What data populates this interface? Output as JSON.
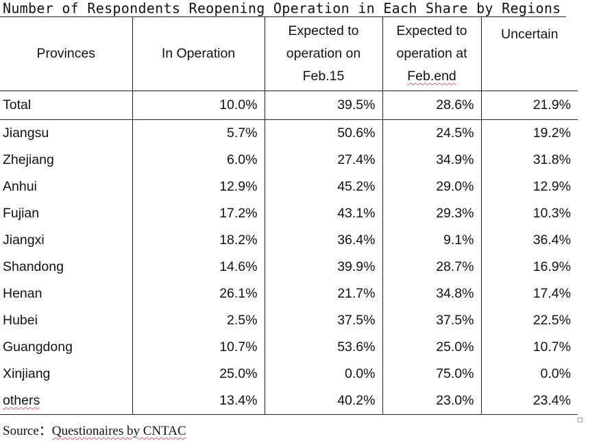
{
  "title": "Number of Respondents Reopening Operation in Each Share by Regions",
  "headers": {
    "provinces": "Provinces",
    "in_operation": "In Operation",
    "feb15": [
      "Expected to",
      "operation on",
      "Feb.15"
    ],
    "febend": [
      "Expected to",
      "operation at",
      "Feb.end"
    ],
    "uncertain": "Uncertain"
  },
  "rows": [
    {
      "province": "Total",
      "in_operation": "10.0%",
      "feb15": "39.5%",
      "febend": "28.6%",
      "uncertain": "21.9%"
    },
    {
      "province": "Jiangsu",
      "in_operation": "5.7%",
      "feb15": "50.6%",
      "febend": "24.5%",
      "uncertain": "19.2%"
    },
    {
      "province": "Zhejiang",
      "in_operation": "6.0%",
      "feb15": "27.4%",
      "febend": "34.9%",
      "uncertain": "31.8%"
    },
    {
      "province": "Anhui",
      "in_operation": "12.9%",
      "feb15": "45.2%",
      "febend": "29.0%",
      "uncertain": "12.9%"
    },
    {
      "province": "Fujian",
      "in_operation": "17.2%",
      "feb15": "43.1%",
      "febend": "29.3%",
      "uncertain": "10.3%"
    },
    {
      "province": "Jiangxi",
      "in_operation": "18.2%",
      "feb15": "36.4%",
      "febend": "9.1%",
      "uncertain": "36.4%"
    },
    {
      "province": "Shandong",
      "in_operation": "14.6%",
      "feb15": "39.9%",
      "febend": "28.7%",
      "uncertain": "16.9%"
    },
    {
      "province": "Henan",
      "in_operation": "26.1%",
      "feb15": "21.7%",
      "febend": "34.8%",
      "uncertain": "17.4%"
    },
    {
      "province": "Hubei",
      "in_operation": "2.5%",
      "feb15": "37.5%",
      "febend": "37.5%",
      "uncertain": "22.5%"
    },
    {
      "province": "Guangdong",
      "in_operation": "10.7%",
      "feb15": "53.6%",
      "febend": "25.0%",
      "uncertain": "10.7%"
    },
    {
      "province": "Xinjiang",
      "in_operation": "25.0%",
      "feb15": "0.0%",
      "febend": "75.0%",
      "uncertain": "0.0%"
    },
    {
      "province": "others",
      "in_operation": "13.4%",
      "feb15": "40.2%",
      "febend": "23.0%",
      "uncertain": "23.4%"
    }
  ],
  "source": {
    "prefix": "Source：",
    "text": "Questionaires by CNTAC"
  }
}
